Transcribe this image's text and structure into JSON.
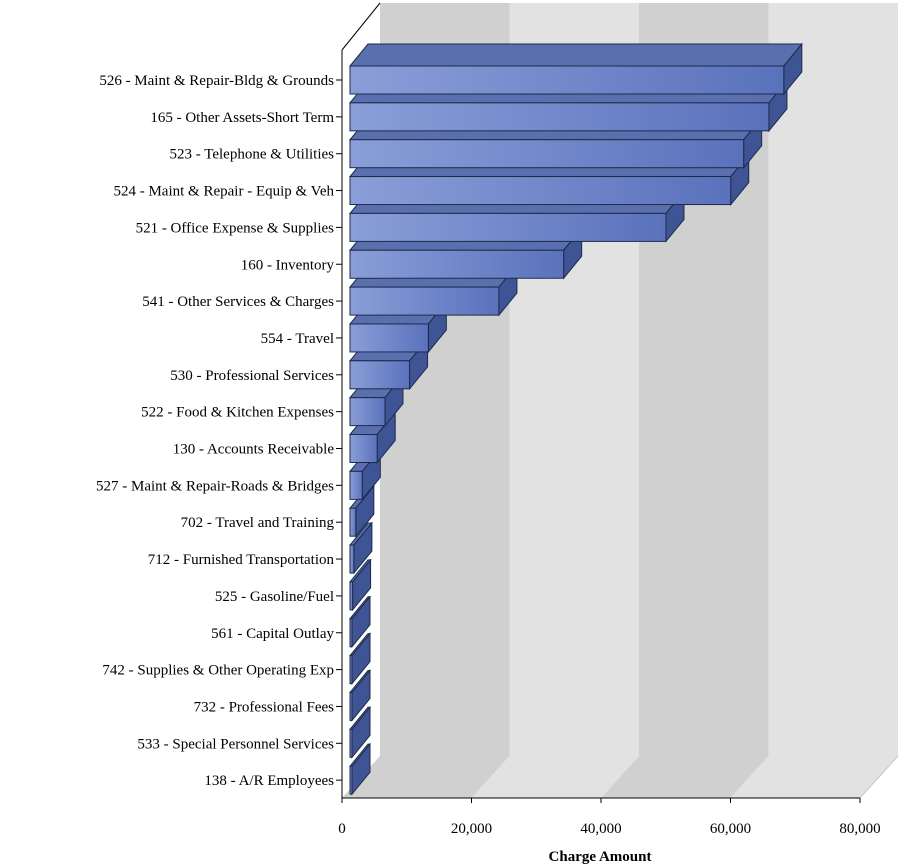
{
  "chart_data": {
    "type": "bar",
    "orientation": "horizontal",
    "three_d": true,
    "categories": [
      "526 - Maint & Repair-Bldg & Grounds",
      "165 - Other Assets-Short Term",
      "523 - Telephone & Utilities",
      "524 - Maint & Repair - Equip & Veh ",
      "521 - Office Expense & Supplies",
      "160 - Inventory",
      "541 - Other Services & Charges",
      "554 - Travel",
      "530 - Professional Services",
      "522 - Food & Kitchen Expenses",
      "130 - Accounts Receivable",
      "527 - Maint & Repair-Roads & Bridges",
      "702 - Travel and Training",
      "712 - Furnished Transportation",
      "525 - Gasoline/Fuel",
      "561 - Capital Outlay",
      "742 - Supplies & Other Operating Exp ",
      "732 - Professional Fees",
      "533 - Special Personnel Services",
      "138 - A/R Employees"
    ],
    "values": [
      67000,
      64700,
      60800,
      58800,
      48800,
      33000,
      23000,
      12100,
      9200,
      5400,
      4200,
      1900,
      900,
      600,
      400,
      250,
      150,
      100,
      60,
      30
    ],
    "xlabel": "Charge Amount",
    "ylabel": "",
    "title": "",
    "xlim": [
      0,
      80000
    ],
    "xticks": [
      0,
      20000,
      40000,
      60000,
      80000
    ],
    "xtick_labels": [
      "0",
      "20,000",
      "40,000",
      "60,000",
      "80,000"
    ],
    "grid": true,
    "legend": "none",
    "colors": {
      "bar_front_light": "#8a9ed8",
      "bar_front_dark": "#5a72bc",
      "bar_top": "#5a6fae",
      "bar_side": "#3f5494",
      "bar_edge": "#1e2a4a",
      "wall_light": "#e2e2e2",
      "wall_dark": "#d0d0d0"
    }
  }
}
